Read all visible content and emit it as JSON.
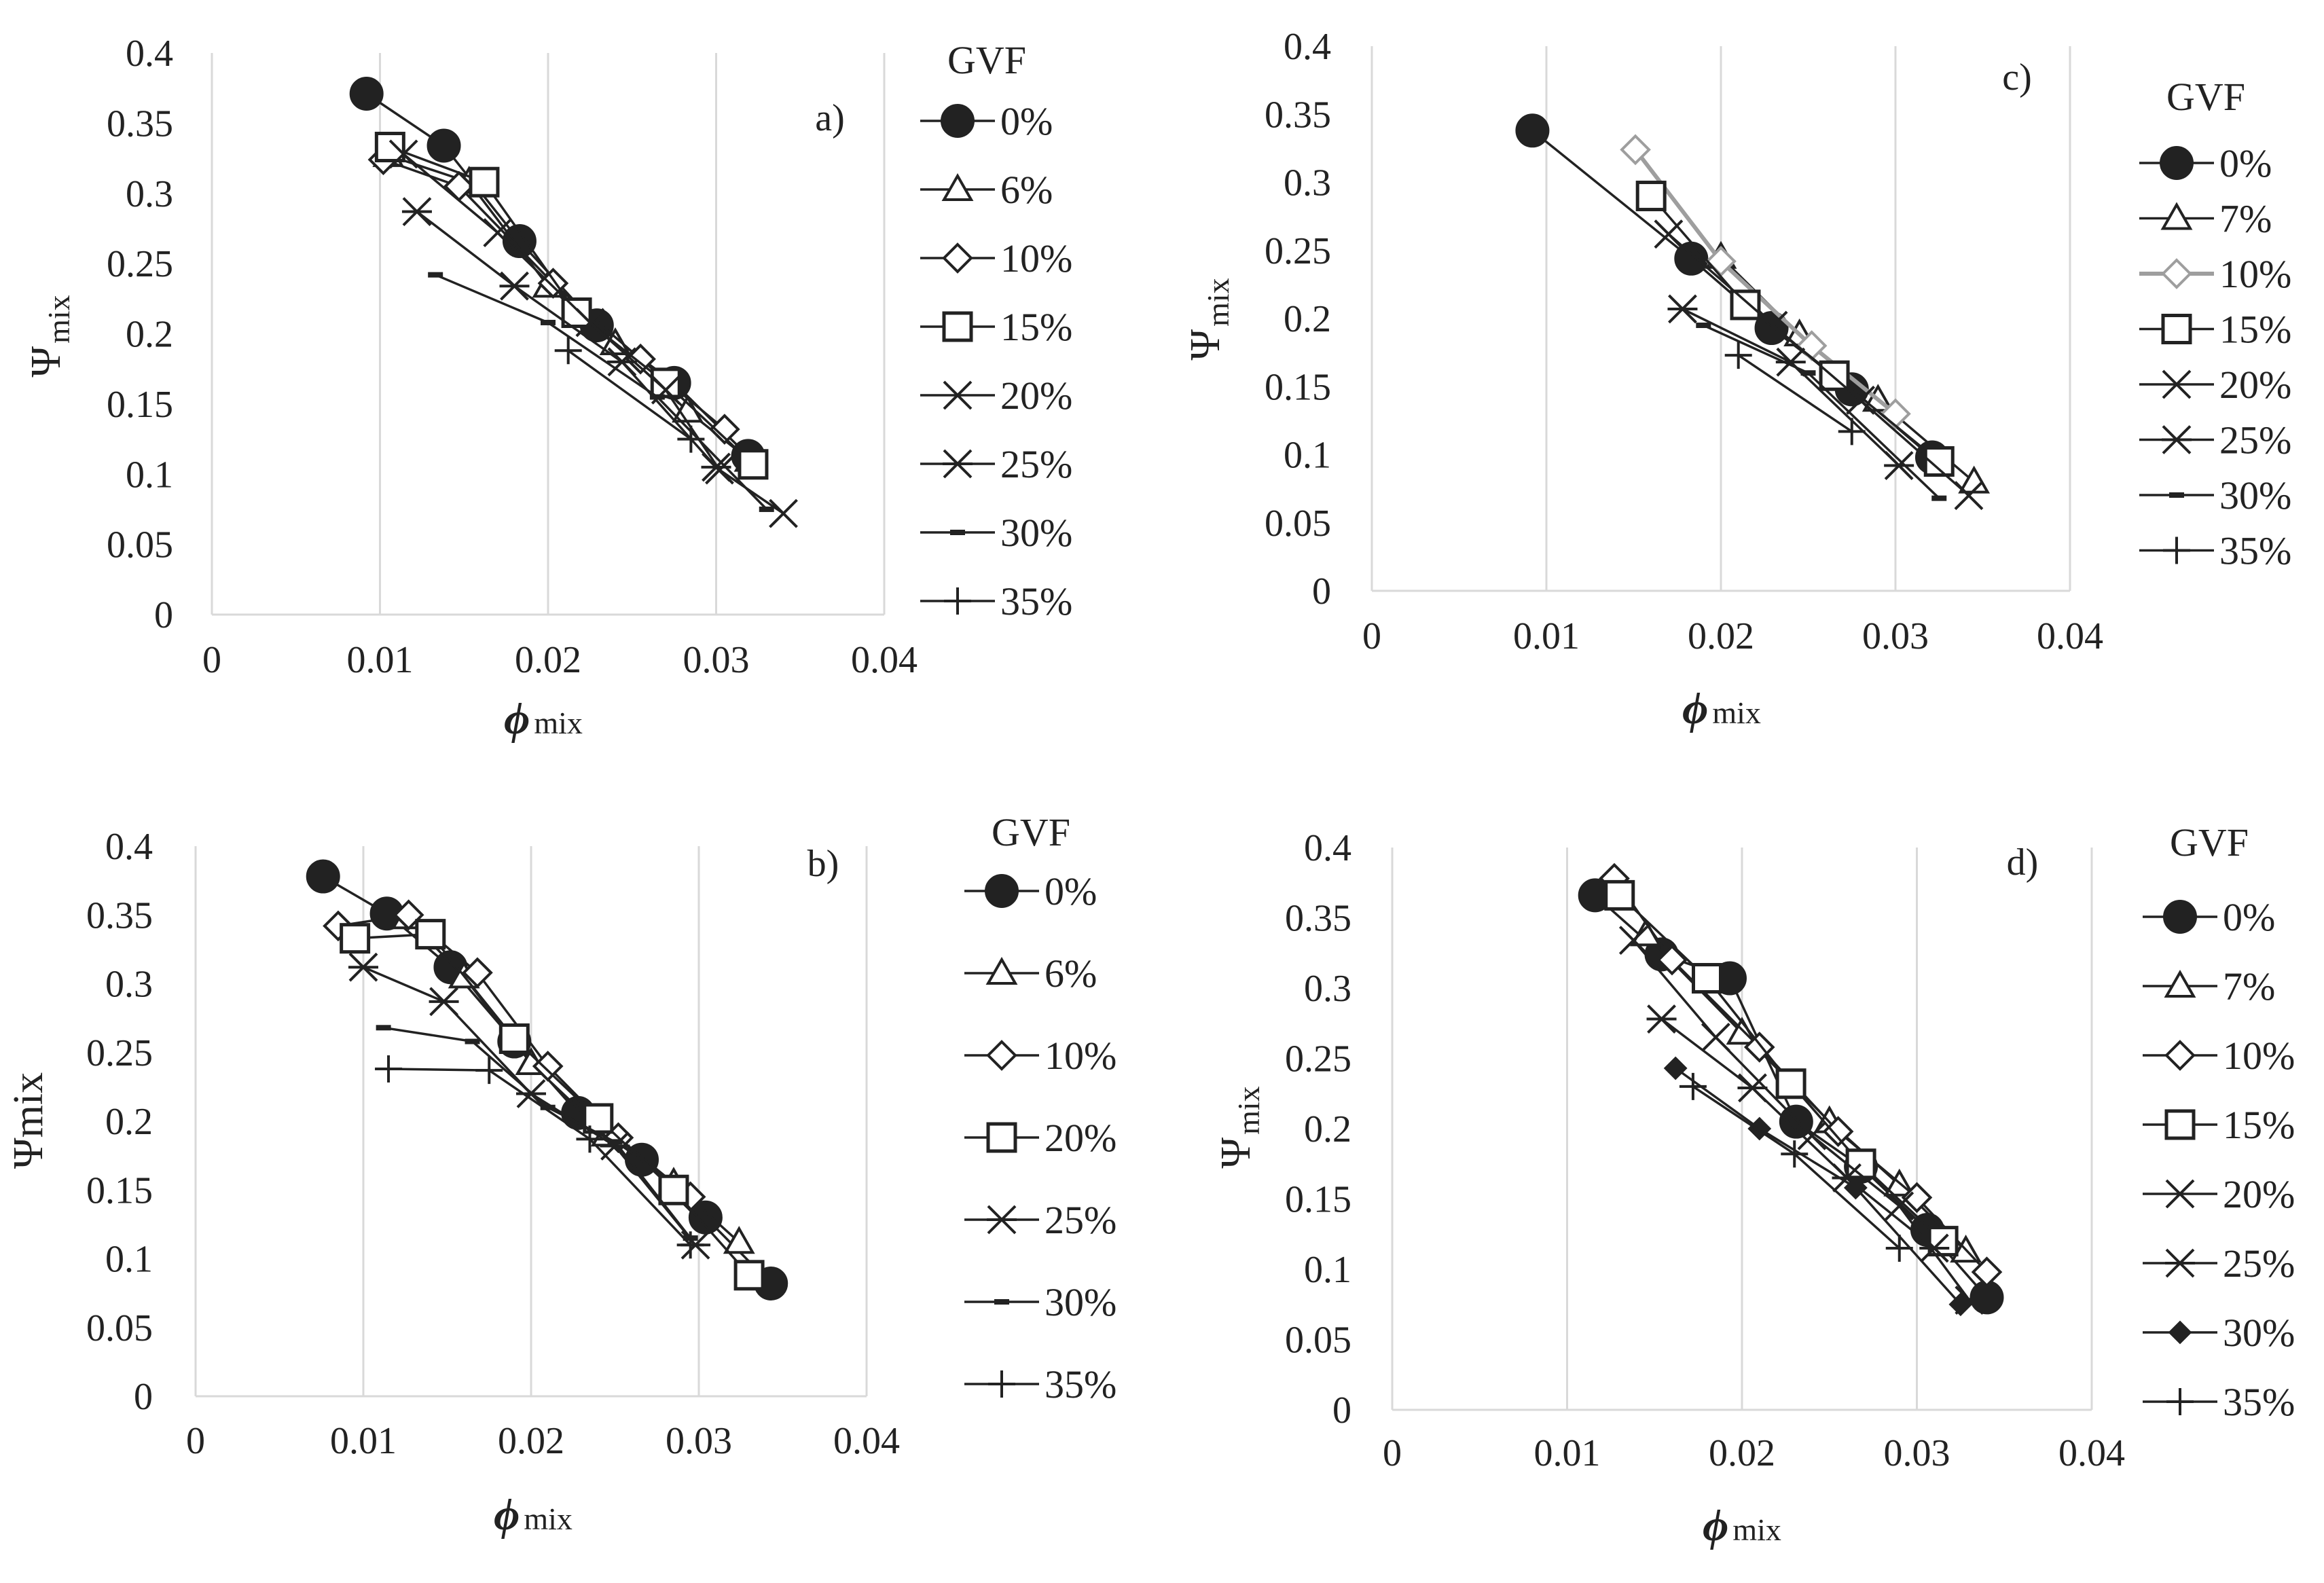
{
  "figure_title": "",
  "chart_data": [
    {
      "type": "line",
      "panel_label": "a)",
      "xlabel": {
        "main": "ϕ",
        "sub": "mix"
      },
      "ylabel": {
        "main": "Ψ",
        "sub": "mix"
      },
      "xlim": [
        0,
        0.04
      ],
      "ylim": [
        0,
        0.4
      ],
      "x_ticks": [
        "0",
        "0.01",
        "0.02",
        "0.03",
        "0.04"
      ],
      "y_ticks": [
        "0",
        "0.05",
        "0.1",
        "0.15",
        "0.2",
        "0.25",
        "0.3",
        "0.35",
        "0.4"
      ],
      "grid": "vertical",
      "legend_title": "GVF",
      "series": [
        {
          "name": "0%",
          "marker": "circle",
          "points": [
            [
              0.0092,
              0.371
            ],
            [
              0.0138,
              0.334
            ],
            [
              0.0183,
              0.266
            ],
            [
              0.0229,
              0.206
            ],
            [
              0.0275,
              0.165
            ],
            [
              0.0319,
              0.113
            ]
          ]
        },
        {
          "name": "6%",
          "marker": "triangle",
          "points": [
            [
              0.0105,
              0.327
            ],
            [
              0.0153,
              0.308
            ],
            [
              0.02,
              0.234
            ],
            [
              0.024,
              0.193
            ],
            [
              0.0283,
              0.145
            ],
            [
              0.032,
              0.11
            ]
          ]
        },
        {
          "name": "10%",
          "marker": "diamond",
          "points": [
            [
              0.0102,
              0.324
            ],
            [
              0.0147,
              0.305
            ],
            [
              0.0203,
              0.236
            ],
            [
              0.0255,
              0.182
            ],
            [
              0.0305,
              0.132
            ]
          ]
        },
        {
          "name": "15%",
          "marker": "square",
          "points": [
            [
              0.0106,
              0.333
            ],
            [
              0.0162,
              0.308
            ],
            [
              0.0217,
              0.215
            ],
            [
              0.027,
              0.165
            ],
            [
              0.0322,
              0.107
            ]
          ]
        },
        {
          "name": "20%",
          "marker": "x",
          "points": [
            [
              0.0114,
              0.328
            ],
            [
              0.017,
              0.272
            ],
            [
              0.0225,
              0.208
            ],
            [
              0.027,
              0.16
            ],
            [
              0.0302,
              0.103
            ],
            [
              0.034,
              0.072
            ]
          ]
        },
        {
          "name": "25%",
          "marker": "asterisk",
          "points": [
            [
              0.0122,
              0.287
            ],
            [
              0.018,
              0.234
            ],
            [
              0.0244,
              0.18
            ],
            [
              0.03,
              0.105
            ]
          ]
        },
        {
          "name": "30%",
          "marker": "dash",
          "points": [
            [
              0.0133,
              0.242
            ],
            [
              0.02,
              0.208
            ],
            [
              0.0265,
              0.155
            ],
            [
              0.033,
              0.075
            ]
          ]
        },
        {
          "name": "35%",
          "marker": "plus",
          "points": [
            [
              0.0212,
              0.188
            ],
            [
              0.0285,
              0.125
            ]
          ]
        }
      ]
    },
    {
      "type": "line",
      "panel_label": "c)",
      "xlabel": {
        "main": "ϕ",
        "sub": "mix"
      },
      "ylabel": {
        "main": "Ψ",
        "sub": "mix"
      },
      "xlim": [
        0,
        0.04
      ],
      "ylim": [
        0,
        0.4
      ],
      "x_ticks": [
        "0",
        "0.01",
        "0.02",
        "0.03",
        "0.04"
      ],
      "y_ticks": [
        "0",
        "0.05",
        "0.1",
        "0.15",
        "0.2",
        "0.25",
        "0.3",
        "0.35",
        "0.4"
      ],
      "grid": "vertical",
      "legend_title": "GVF",
      "series": [
        {
          "name": "0%",
          "marker": "circle",
          "points": [
            [
              0.0092,
              0.338
            ],
            [
              0.0183,
              0.244
            ],
            [
              0.0229,
              0.193
            ],
            [
              0.0275,
              0.148
            ],
            [
              0.0321,
              0.098
            ]
          ]
        },
        {
          "name": "7%",
          "marker": "triangle",
          "points": [
            [
              0.02,
              0.245
            ],
            [
              0.0245,
              0.188
            ],
            [
              0.029,
              0.14
            ],
            [
              0.0345,
              0.08
            ]
          ]
        },
        {
          "name": "10%",
          "marker": "diamond",
          "color": "#9e9e9e",
          "points": [
            [
              0.0151,
              0.324
            ],
            [
              0.02,
              0.242
            ],
            [
              0.0252,
              0.18
            ],
            [
              0.03,
              0.13
            ]
          ]
        },
        {
          "name": "15%",
          "marker": "square",
          "points": [
            [
              0.016,
              0.29
            ],
            [
              0.0214,
              0.21
            ],
            [
              0.0265,
              0.158
            ],
            [
              0.0325,
              0.095
            ]
          ]
        },
        {
          "name": "20%",
          "marker": "x",
          "points": [
            [
              0.017,
              0.262
            ],
            [
              0.023,
              0.195
            ],
            [
              0.028,
              0.14
            ],
            [
              0.0342,
              0.07
            ]
          ]
        },
        {
          "name": "25%",
          "marker": "asterisk",
          "points": [
            [
              0.0178,
              0.207
            ],
            [
              0.024,
              0.168
            ],
            [
              0.0302,
              0.092
            ]
          ]
        },
        {
          "name": "30%",
          "marker": "dash",
          "points": [
            [
              0.019,
              0.195
            ],
            [
              0.025,
              0.16
            ],
            [
              0.0325,
              0.068
            ]
          ]
        },
        {
          "name": "35%",
          "marker": "plus",
          "points": [
            [
              0.021,
              0.173
            ],
            [
              0.0275,
              0.117
            ]
          ]
        }
      ]
    },
    {
      "type": "line",
      "panel_label": "b)",
      "xlabel": {
        "main": "ϕ",
        "sub": "mix"
      },
      "ylabel": {
        "main": "Ψmix",
        "sub": ""
      },
      "xlim": [
        0,
        0.04
      ],
      "ylim": [
        0,
        0.4
      ],
      "x_ticks": [
        "0",
        "0.01",
        "0.02",
        "0.03",
        "0.04"
      ],
      "y_ticks": [
        "0",
        "0.05",
        "0.1",
        "0.15",
        "0.2",
        "0.25",
        "0.3",
        "0.35",
        "0.4"
      ],
      "grid": "vertical",
      "legend_title": "GVF",
      "series": [
        {
          "name": "0%",
          "marker": "circle",
          "points": [
            [
              0.0076,
              0.378
            ],
            [
              0.0114,
              0.351
            ],
            [
              0.0152,
              0.312
            ],
            [
              0.019,
              0.258
            ],
            [
              0.0228,
              0.206
            ],
            [
              0.0266,
              0.172
            ],
            [
              0.0304,
              0.13
            ],
            [
              0.0343,
              0.082
            ]
          ]
        },
        {
          "name": "6%",
          "marker": "triangle",
          "points": [
            [
              0.0126,
              0.348
            ],
            [
              0.016,
              0.305
            ],
            [
              0.02,
              0.242
            ],
            [
              0.0245,
              0.19
            ],
            [
              0.0285,
              0.155
            ],
            [
              0.0324,
              0.112
            ]
          ]
        },
        {
          "name": "10%",
          "marker": "diamond",
          "points": [
            [
              0.0085,
              0.342
            ],
            [
              0.0127,
              0.35
            ],
            [
              0.0168,
              0.308
            ],
            [
              0.021,
              0.24
            ],
            [
              0.0252,
              0.188
            ],
            [
              0.0295,
              0.145
            ]
          ]
        },
        {
          "name": "20%",
          "marker": "square",
          "points": [
            [
              0.0095,
              0.333
            ],
            [
              0.014,
              0.336
            ],
            [
              0.019,
              0.26
            ],
            [
              0.024,
              0.202
            ],
            [
              0.0285,
              0.15
            ],
            [
              0.033,
              0.088
            ]
          ]
        },
        {
          "name": "25%",
          "marker": "asterisk",
          "points": [
            [
              0.01,
              0.312
            ],
            [
              0.0148,
              0.287
            ],
            [
              0.02,
              0.22
            ],
            [
              0.025,
              0.182
            ],
            [
              0.0298,
              0.11
            ]
          ]
        },
        {
          "name": "30%",
          "marker": "dash",
          "points": [
            [
              0.0112,
              0.268
            ],
            [
              0.0165,
              0.258
            ],
            [
              0.021,
              0.21
            ],
            [
              0.025,
              0.185
            ],
            [
              0.0295,
              0.115
            ]
          ]
        },
        {
          "name": "35%",
          "marker": "plus",
          "points": [
            [
              0.0115,
              0.238
            ],
            [
              0.0175,
              0.237
            ],
            [
              0.0235,
              0.187
            ],
            [
              0.0295,
              0.11
            ]
          ]
        }
      ]
    },
    {
      "type": "line",
      "panel_label": "d)",
      "xlabel": {
        "main": "ϕ",
        "sub": "mix"
      },
      "ylabel": {
        "main": "Ψ",
        "sub": "mix"
      },
      "xlim": [
        0,
        0.04
      ],
      "ylim": [
        0,
        0.4
      ],
      "x_ticks": [
        "0",
        "0.01",
        "0.02",
        "0.03",
        "0.04"
      ],
      "y_ticks": [
        "0",
        "0.05",
        "0.1",
        "0.15",
        "0.2",
        "0.25",
        "0.3",
        "0.35",
        "0.4"
      ],
      "grid": "vertical",
      "legend_title": "GVF",
      "series": [
        {
          "name": "0%",
          "marker": "circle",
          "points": [
            [
              0.0116,
              0.366
            ],
            [
              0.0154,
              0.324
            ],
            [
              0.0193,
              0.307
            ],
            [
              0.0231,
              0.205
            ],
            [
              0.0268,
              0.173
            ],
            [
              0.0306,
              0.128
            ],
            [
              0.034,
              0.08
            ]
          ]
        },
        {
          "name": "7%",
          "marker": "triangle",
          "points": [
            [
              0.0145,
              0.338
            ],
            [
              0.02,
              0.268
            ],
            [
              0.025,
              0.205
            ],
            [
              0.029,
              0.16
            ],
            [
              0.0328,
              0.113
            ]
          ]
        },
        {
          "name": "10%",
          "marker": "diamond",
          "points": [
            [
              0.0127,
              0.378
            ],
            [
              0.016,
              0.32
            ],
            [
              0.021,
              0.258
            ],
            [
              0.0255,
              0.198
            ],
            [
              0.03,
              0.151
            ],
            [
              0.034,
              0.098
            ]
          ]
        },
        {
          "name": "15%",
          "marker": "square",
          "points": [
            [
              0.013,
              0.366
            ],
            [
              0.018,
              0.307
            ],
            [
              0.0228,
              0.232
            ],
            [
              0.0268,
              0.175
            ],
            [
              0.0315,
              0.12
            ]
          ]
        },
        {
          "name": "20%",
          "marker": "x",
          "points": [
            [
              0.0138,
              0.334
            ],
            [
              0.0185,
              0.265
            ],
            [
              0.024,
              0.195
            ],
            [
              0.029,
              0.145
            ],
            [
              0.033,
              0.078
            ]
          ]
        },
        {
          "name": "25%",
          "marker": "asterisk",
          "points": [
            [
              0.0154,
              0.278
            ],
            [
              0.0206,
              0.229
            ],
            [
              0.026,
              0.165
            ],
            [
              0.031,
              0.115
            ]
          ]
        },
        {
          "name": "30%",
          "marker": "diamond-filled",
          "points": [
            [
              0.0162,
              0.243
            ],
            [
              0.021,
              0.2
            ],
            [
              0.0265,
              0.158
            ],
            [
              0.0325,
              0.075
            ]
          ]
        },
        {
          "name": "35%",
          "marker": "plus",
          "points": [
            [
              0.0172,
              0.23
            ],
            [
              0.023,
              0.182
            ],
            [
              0.029,
              0.115
            ]
          ]
        }
      ]
    }
  ]
}
